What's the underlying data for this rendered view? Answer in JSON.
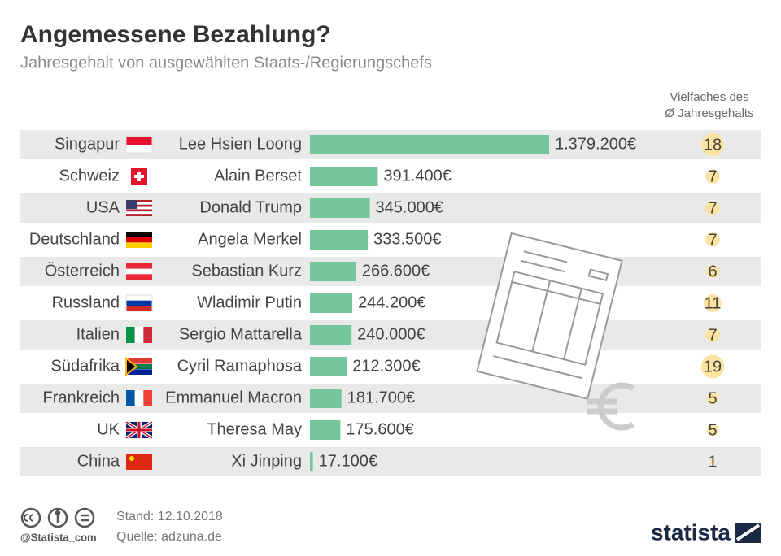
{
  "chart_data": {
    "type": "bar",
    "title": "Angemessene Bezahlung?",
    "subtitle": "Jahresgehalt von ausgewählten Staats-/Regierungschefs",
    "categories": [
      "Singapur",
      "Schweiz",
      "USA",
      "Deutschland",
      "Österreich",
      "Russland",
      "Italien",
      "Südafrika",
      "Frankreich",
      "UK",
      "China"
    ],
    "leaders": [
      "Lee Hsien Loong",
      "Alain Berset",
      "Donald Trump",
      "Angela Merkel",
      "Sebastian Kurz",
      "Wladimir Putin",
      "Sergio Mattarella",
      "Cyril Ramaphosa",
      "Emmanuel Macron",
      "Theresa May",
      "Xi Jinping"
    ],
    "values": [
      1379200,
      391400,
      345000,
      333500,
      266600,
      244200,
      240000,
      212300,
      181700,
      175600,
      17100
    ],
    "value_labels": [
      "1.379.200€",
      "391.400€",
      "345.000€",
      "333.500€",
      "266.600€",
      "244.200€",
      "240.000€",
      "212.300€",
      "181.700€",
      "175.600€",
      "17.100€"
    ],
    "color": "#74c79a",
    "multiples_title": [
      "Vielfaches des",
      "Ø Jahresgehalts"
    ],
    "multiples": [
      18,
      7,
      7,
      7,
      6,
      11,
      7,
      19,
      5,
      5,
      1
    ],
    "multiples_color": "#fce4a0",
    "footer": {
      "handle": "@Statista_com",
      "date": "Stand: 12.10.2018",
      "source": "Quelle: adzuna.de",
      "brand": "statista"
    }
  }
}
